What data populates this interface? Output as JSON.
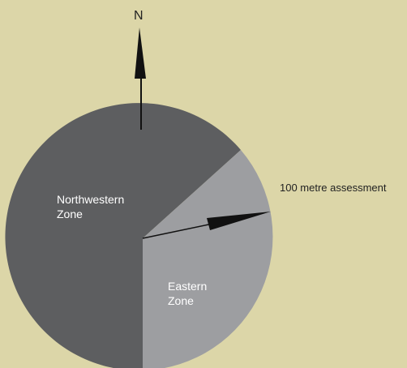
{
  "north_label": "N",
  "zones": {
    "northwestern": {
      "line1": "Northwestern",
      "line2": "Zone",
      "color": "#5d5e60"
    },
    "eastern": {
      "line1": "Eastern",
      "line2": "Zone",
      "color": "#9d9ea1"
    }
  },
  "assessment_label": "100 metre assessment",
  "background_color": "#dcd6a8",
  "arrow_color": "#111111"
}
